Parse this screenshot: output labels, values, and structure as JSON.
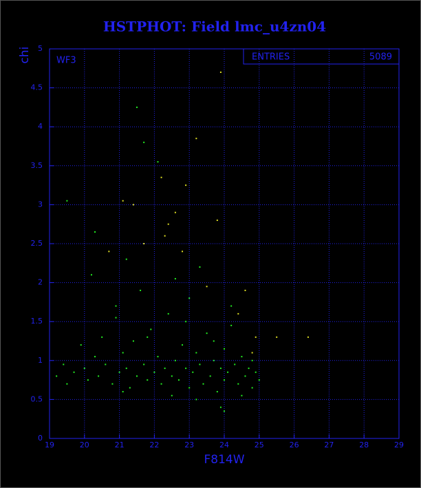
{
  "chart_data": {
    "type": "scatter",
    "title": "HSTPHOT: Field lmc_u4zn04",
    "x_label": "F814W",
    "y_label": "chi",
    "panel_label": "WF3",
    "stats": {
      "label": "ENTRIES",
      "value": 5089
    },
    "xlim": [
      19,
      29
    ],
    "ylim": [
      0,
      5
    ],
    "xticks": [
      19,
      20,
      21,
      22,
      23,
      24,
      25,
      26,
      27,
      28,
      29
    ],
    "yticks": [
      0,
      0.5,
      1,
      1.5,
      2,
      2.5,
      3,
      3.5,
      4,
      4.5,
      5
    ],
    "grid": true,
    "series": [
      {
        "color": "#22ee22",
        "x": [
          19.2,
          19.4,
          19.5,
          19.7,
          19.9,
          20.0,
          20.1,
          20.3,
          20.4,
          20.5,
          20.6,
          20.8,
          20.9,
          21.0,
          21.1,
          21.2,
          21.3,
          21.4,
          21.5,
          21.6,
          21.7,
          21.8,
          21.9,
          22.0,
          22.1,
          22.2,
          22.3,
          22.4,
          22.5,
          22.6,
          22.7,
          22.8,
          22.9,
          23.0,
          23.0,
          23.1,
          23.2,
          23.3,
          23.4,
          23.5,
          23.6,
          23.7,
          23.8,
          23.9,
          24.0,
          24.0,
          24.1,
          24.2,
          24.3,
          24.4,
          24.5,
          24.6,
          24.7,
          24.8,
          24.9,
          25.0,
          21.5,
          21.7,
          22.1,
          21.2,
          20.2,
          20.9,
          22.6,
          23.3,
          24.2,
          21.8,
          22.9,
          23.7,
          24.5,
          22.5,
          23.2,
          21.1,
          24.8,
          23.9,
          24.0,
          19.5,
          20.3
        ],
        "values": [
          0.8,
          0.95,
          0.7,
          0.85,
          1.2,
          0.9,
          0.75,
          1.05,
          0.8,
          1.3,
          0.95,
          0.7,
          1.55,
          0.85,
          1.1,
          0.9,
          0.65,
          1.25,
          0.8,
          1.9,
          0.95,
          0.75,
          1.4,
          0.85,
          1.05,
          0.7,
          0.9,
          1.6,
          0.8,
          1.0,
          0.75,
          1.2,
          0.9,
          0.65,
          1.8,
          0.85,
          1.1,
          0.95,
          0.7,
          1.35,
          0.8,
          1.0,
          0.6,
          0.9,
          1.15,
          0.75,
          0.85,
          1.45,
          0.95,
          0.7,
          1.05,
          0.8,
          0.9,
          0.65,
          0.85,
          0.75,
          4.25,
          3.8,
          3.55,
          2.3,
          2.1,
          1.7,
          2.05,
          2.2,
          1.7,
          1.3,
          1.5,
          1.25,
          0.55,
          0.55,
          0.5,
          0.6,
          1.0,
          0.4,
          0.35,
          3.05,
          2.65
        ]
      },
      {
        "color": "#dddd22",
        "x": [
          22.2,
          22.9,
          23.2,
          23.9,
          22.4,
          22.3,
          23.8,
          21.4,
          21.7,
          22.8,
          24.6,
          24.4,
          24.9,
          25.5,
          26.4,
          21.1,
          20.7,
          22.6,
          24.8,
          23.5
        ],
        "values": [
          3.35,
          3.25,
          3.85,
          4.7,
          2.75,
          2.6,
          2.8,
          3.0,
          2.5,
          2.4,
          1.9,
          1.6,
          1.3,
          1.3,
          1.3,
          3.05,
          2.4,
          2.9,
          1.1,
          1.95
        ]
      }
    ]
  }
}
